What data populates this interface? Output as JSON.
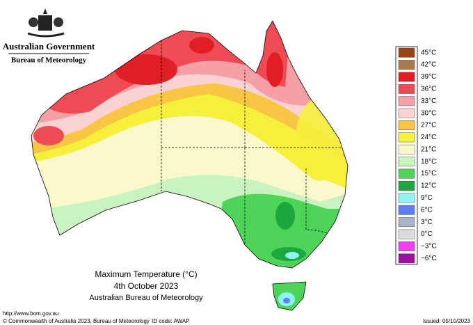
{
  "header": {
    "title": "Australian Government",
    "subtitle": "Bureau of Meteorology"
  },
  "map": {
    "title": "Maximum Temperature (°C)",
    "date": "4th October 2023",
    "source": "Australian Bureau of Meteorology"
  },
  "legend": {
    "entries": [
      {
        "label": "45°C",
        "color": "#9a4416"
      },
      {
        "label": "42°C",
        "color": "#a97a4a"
      },
      {
        "label": "39°C",
        "color": "#e01e26"
      },
      {
        "label": "36°C",
        "color": "#ef4b55"
      },
      {
        "label": "33°C",
        "color": "#f5a0a5"
      },
      {
        "label": "30°C",
        "color": "#fbd2d4"
      },
      {
        "label": "27°C",
        "color": "#f9c544"
      },
      {
        "label": "24°C",
        "color": "#f6f03c"
      },
      {
        "label": "21°C",
        "color": "#fbf8cc"
      },
      {
        "label": "18°C",
        "color": "#c9f3bf"
      },
      {
        "label": "15°C",
        "color": "#4fd45a"
      },
      {
        "label": "12°C",
        "color": "#1ca83c"
      },
      {
        "label": "9°C",
        "color": "#8ff4f8"
      },
      {
        "label": "6°C",
        "color": "#5f7ef0"
      },
      {
        "label": "3°C",
        "color": "#a9b4c4"
      },
      {
        "label": "0°C",
        "color": "#dcdcdc"
      },
      {
        "label": "−3°C",
        "color": "#f43cf4"
      },
      {
        "label": "−6°C",
        "color": "#a010a0"
      }
    ]
  },
  "footer": {
    "url": "http://www.bom.gov.au",
    "copyright": "© Commonwealth of Australia 2023, Bureau of Meteorology",
    "id_code": "ID code: AWAP",
    "issued": "Issued: 05/10/2023"
  }
}
